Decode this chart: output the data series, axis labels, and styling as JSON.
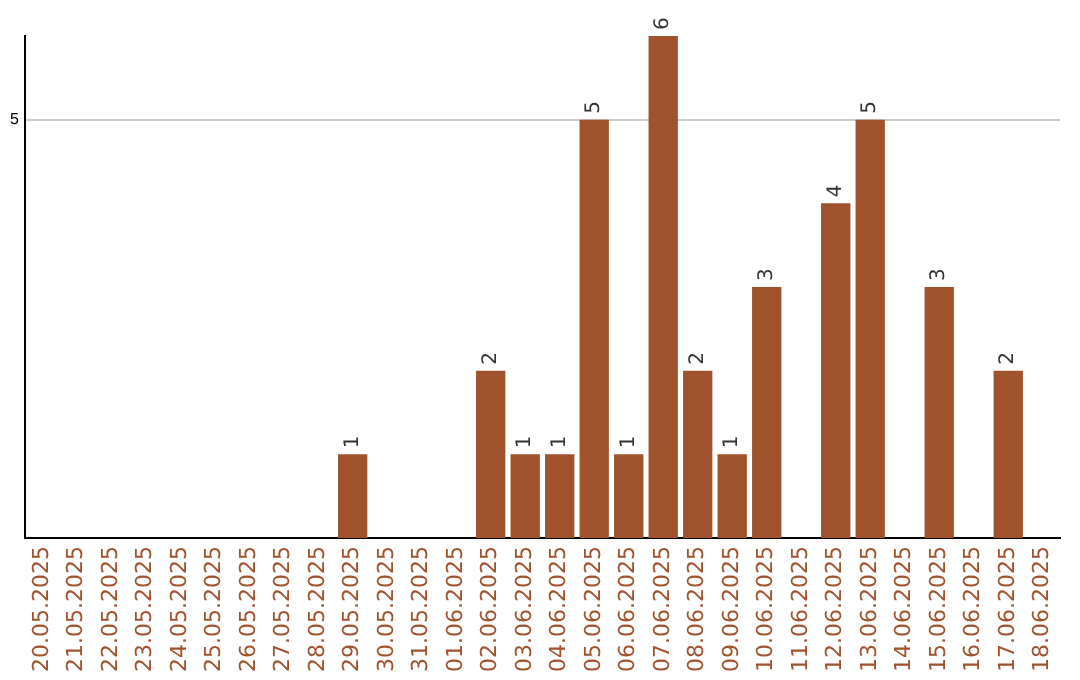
{
  "chart_data": {
    "type": "bar",
    "categories": [
      "20.05.2025",
      "21.05.2025",
      "22.05.2025",
      "23.05.2025",
      "24.05.2025",
      "25.05.2025",
      "26.05.2025",
      "27.05.2025",
      "28.05.2025",
      "29.05.2025",
      "30.05.2025",
      "31.05.2025",
      "01.06.2025",
      "02.06.2025",
      "03.06.2025",
      "04.06.2025",
      "05.06.2025",
      "06.06.2025",
      "07.06.2025",
      "08.06.2025",
      "09.06.2025",
      "10.06.2025",
      "11.06.2025",
      "12.06.2025",
      "13.06.2025",
      "14.06.2025",
      "15.06.2025",
      "16.06.2025",
      "17.06.2025",
      "18.06.2025"
    ],
    "values": [
      0,
      0,
      0,
      0,
      0,
      0,
      0,
      0,
      0,
      1,
      0,
      0,
      0,
      2,
      1,
      1,
      5,
      1,
      6,
      2,
      1,
      3,
      0,
      4,
      5,
      0,
      3,
      0,
      2,
      0
    ],
    "value_labels": [
      null,
      null,
      null,
      null,
      null,
      null,
      null,
      null,
      null,
      "1",
      null,
      null,
      null,
      "2",
      "1",
      "1",
      "5",
      "1",
      "6",
      "2",
      "1",
      "3",
      null,
      "4",
      "5",
      null,
      "3",
      null,
      "2",
      null
    ],
    "color": "#a0522d",
    "ylim": [
      0,
      6
    ],
    "yticks": [
      5
    ],
    "grid": "y",
    "legend": false
  }
}
